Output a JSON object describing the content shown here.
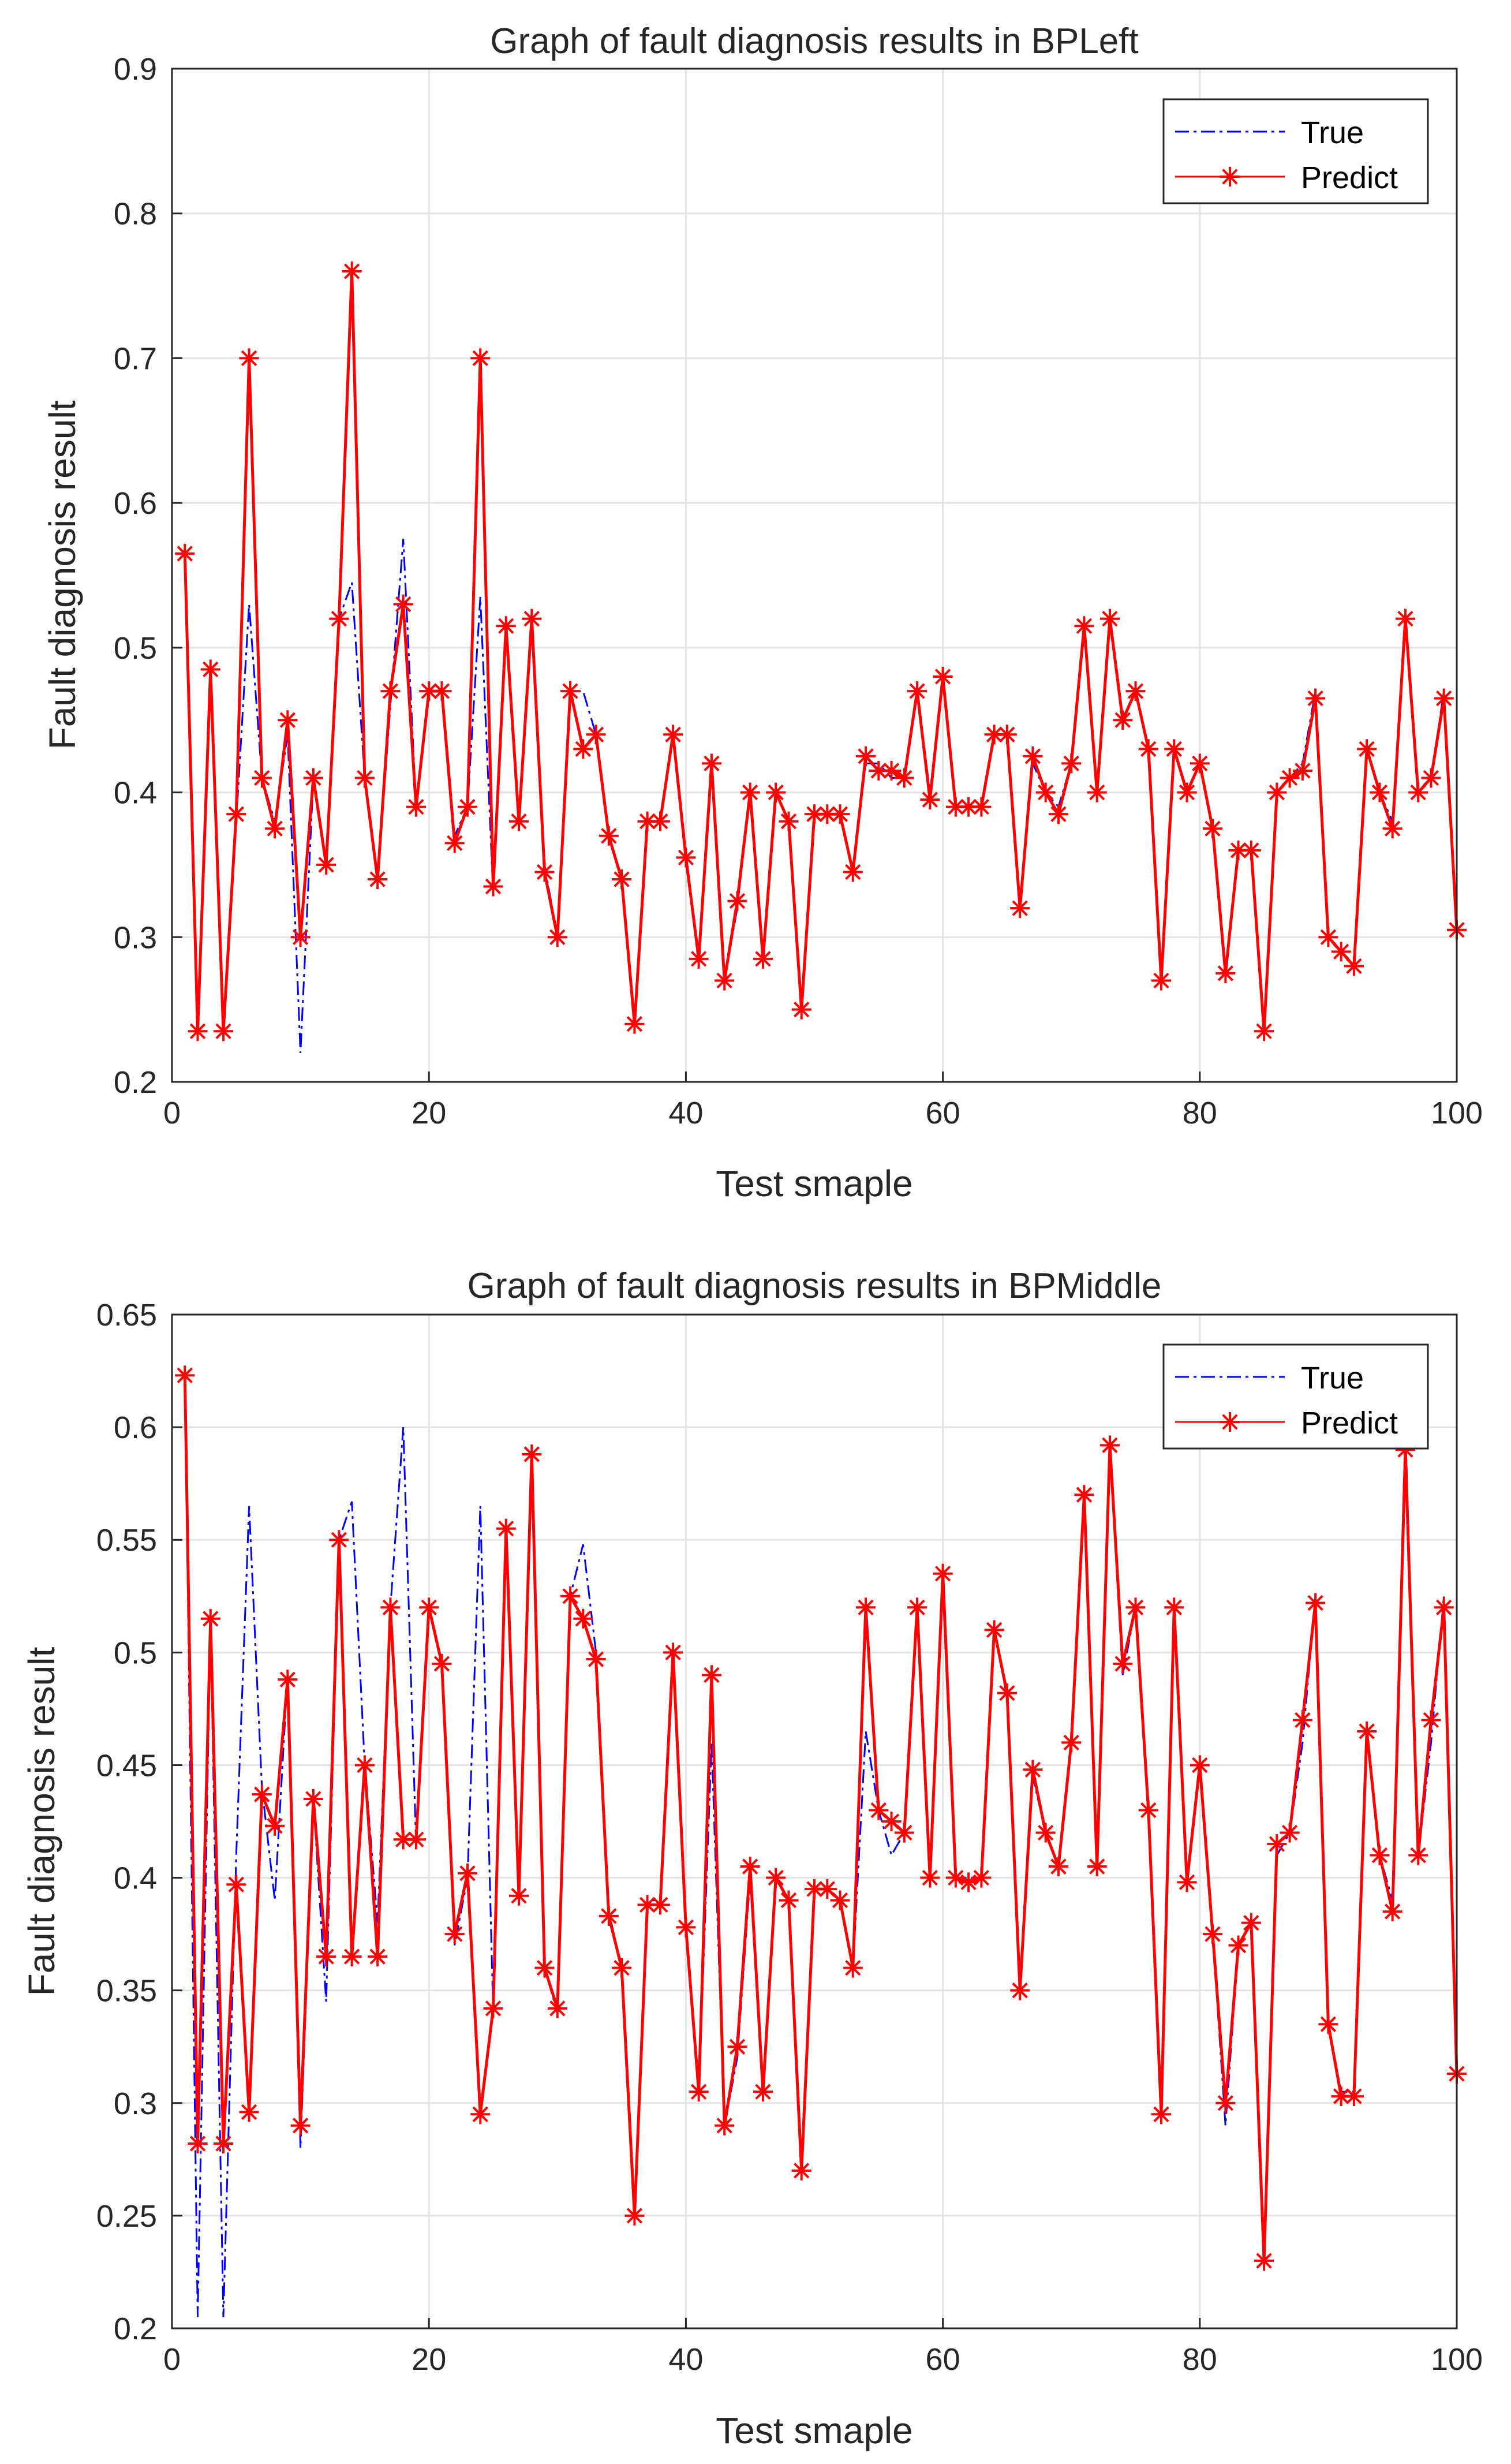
{
  "chart_data": [
    {
      "type": "line",
      "title": "Graph of fault diagnosis results in BPLeft",
      "xlabel": "Test smaple",
      "ylabel": "Fault diagnosis result",
      "xlim": [
        0,
        100
      ],
      "ylim": [
        0.2,
        0.9
      ],
      "xticks": [
        "0",
        "20",
        "40",
        "60",
        "80",
        "100"
      ],
      "yticks": [
        "0.2",
        "0.3",
        "0.4",
        "0.5",
        "0.6",
        "0.7",
        "0.8",
        "0.9"
      ],
      "grid": true,
      "legend_position": "top-right",
      "series": [
        {
          "name": "True",
          "style": "dash-dot",
          "color": "#0000ff",
          "x": [
            1,
            2,
            3,
            4,
            5,
            6,
            7,
            8,
            9,
            10,
            11,
            12,
            13,
            14,
            15,
            16,
            17,
            18,
            19,
            20,
            21,
            22,
            23,
            24,
            25,
            26,
            27,
            28,
            29,
            30,
            31,
            32,
            33,
            34,
            35,
            36,
            37,
            38,
            39,
            40,
            41,
            42,
            43,
            44,
            45,
            46,
            47,
            48,
            49,
            50,
            51,
            52,
            53,
            54,
            55,
            56,
            57,
            58,
            59,
            60,
            61,
            62,
            63,
            64,
            65,
            66,
            67,
            68,
            69,
            70,
            71,
            72,
            73,
            74,
            75,
            76,
            77,
            78,
            79,
            80,
            81,
            82,
            83,
            84,
            85,
            86,
            87,
            88,
            89,
            90,
            91,
            92,
            93,
            94,
            95,
            96,
            97,
            98,
            99,
            100
          ],
          "values": [
            0.57,
            0.23,
            0.49,
            0.23,
            0.38,
            0.53,
            0.41,
            0.38,
            0.44,
            0.22,
            0.41,
            0.35,
            0.52,
            0.545,
            0.41,
            0.34,
            0.46,
            0.575,
            0.39,
            0.47,
            0.47,
            0.37,
            0.39,
            0.535,
            0.33,
            0.515,
            0.38,
            0.52,
            0.35,
            0.3,
            0.47,
            0.47,
            0.44,
            0.37,
            0.34,
            0.24,
            0.38,
            0.38,
            0.44,
            0.36,
            0.28,
            0.42,
            0.27,
            0.32,
            0.4,
            0.28,
            0.4,
            0.38,
            0.25,
            0.385,
            0.385,
            0.385,
            0.345,
            0.42,
            0.42,
            0.41,
            0.41,
            0.47,
            0.4,
            0.48,
            0.39,
            0.39,
            0.39,
            0.44,
            0.44,
            0.32,
            0.42,
            0.4,
            0.39,
            0.42,
            0.51,
            0.4,
            0.52,
            0.45,
            0.47,
            0.43,
            0.27,
            0.43,
            0.4,
            0.42,
            0.375,
            0.275,
            0.36,
            0.36,
            0.235,
            0.4,
            0.41,
            0.42,
            0.47,
            0.3,
            0.29,
            0.28,
            0.43,
            0.4,
            0.38,
            0.52,
            0.4,
            0.41,
            0.47,
            0.305
          ]
        },
        {
          "name": "Predict",
          "style": "solid-star",
          "color": "#ff0000",
          "x": [
            1,
            2,
            3,
            4,
            5,
            6,
            7,
            8,
            9,
            10,
            11,
            12,
            13,
            14,
            15,
            16,
            17,
            18,
            19,
            20,
            21,
            22,
            23,
            24,
            25,
            26,
            27,
            28,
            29,
            30,
            31,
            32,
            33,
            34,
            35,
            36,
            37,
            38,
            39,
            40,
            41,
            42,
            43,
            44,
            45,
            46,
            47,
            48,
            49,
            50,
            51,
            52,
            53,
            54,
            55,
            56,
            57,
            58,
            59,
            60,
            61,
            62,
            63,
            64,
            65,
            66,
            67,
            68,
            69,
            70,
            71,
            72,
            73,
            74,
            75,
            76,
            77,
            78,
            79,
            80,
            81,
            82,
            83,
            84,
            85,
            86,
            87,
            88,
            89,
            90,
            91,
            92,
            93,
            94,
            95,
            96,
            97,
            98,
            99,
            100
          ],
          "values": [
            0.565,
            0.235,
            0.485,
            0.235,
            0.385,
            0.7,
            0.41,
            0.375,
            0.45,
            0.3,
            0.41,
            0.35,
            0.52,
            0.76,
            0.41,
            0.34,
            0.47,
            0.53,
            0.39,
            0.47,
            0.47,
            0.365,
            0.39,
            0.7,
            0.335,
            0.515,
            0.38,
            0.52,
            0.345,
            0.3,
            0.47,
            0.43,
            0.44,
            0.37,
            0.34,
            0.24,
            0.38,
            0.38,
            0.44,
            0.355,
            0.285,
            0.42,
            0.27,
            0.325,
            0.4,
            0.285,
            0.4,
            0.38,
            0.25,
            0.385,
            0.385,
            0.385,
            0.345,
            0.425,
            0.415,
            0.415,
            0.41,
            0.47,
            0.395,
            0.48,
            0.39,
            0.39,
            0.39,
            0.44,
            0.44,
            0.32,
            0.425,
            0.4,
            0.385,
            0.42,
            0.515,
            0.4,
            0.52,
            0.45,
            0.47,
            0.43,
            0.27,
            0.43,
            0.4,
            0.42,
            0.375,
            0.275,
            0.36,
            0.36,
            0.235,
            0.4,
            0.41,
            0.415,
            0.465,
            0.3,
            0.29,
            0.28,
            0.43,
            0.4,
            0.375,
            0.52,
            0.4,
            0.41,
            0.465,
            0.305
          ]
        }
      ]
    },
    {
      "type": "line",
      "title": "Graph of fault diagnosis results in BPMiddle",
      "xlabel": "Test smaple",
      "ylabel": "Fault diagnosis result",
      "xlim": [
        0,
        100
      ],
      "ylim": [
        0.2,
        0.65
      ],
      "xticks": [
        "0",
        "20",
        "40",
        "60",
        "80",
        "100"
      ],
      "yticks": [
        "0.2",
        "0.25",
        "0.3",
        "0.35",
        "0.4",
        "0.45",
        "0.5",
        "0.55",
        "0.6",
        "0.65"
      ],
      "grid": true,
      "legend_position": "top-right",
      "series": [
        {
          "name": "True",
          "style": "dash-dot",
          "color": "#0000ff",
          "x": [
            1,
            2,
            3,
            4,
            5,
            6,
            7,
            8,
            9,
            10,
            11,
            12,
            13,
            14,
            15,
            16,
            17,
            18,
            19,
            20,
            21,
            22,
            23,
            24,
            25,
            26,
            27,
            28,
            29,
            30,
            31,
            32,
            33,
            34,
            35,
            36,
            37,
            38,
            39,
            40,
            41,
            42,
            43,
            44,
            45,
            46,
            47,
            48,
            49,
            50,
            51,
            52,
            53,
            54,
            55,
            56,
            57,
            58,
            59,
            60,
            61,
            62,
            63,
            64,
            65,
            66,
            67,
            68,
            69,
            70,
            71,
            72,
            73,
            74,
            75,
            76,
            77,
            78,
            79,
            80,
            81,
            82,
            83,
            84,
            85,
            86,
            87,
            88,
            89,
            90,
            91,
            92,
            93,
            94,
            95,
            96,
            97,
            98,
            99,
            100
          ],
          "values": [
            0.625,
            0.205,
            0.515,
            0.205,
            0.41,
            0.565,
            0.44,
            0.39,
            0.49,
            0.28,
            0.435,
            0.345,
            0.55,
            0.567,
            0.45,
            0.38,
            0.52,
            0.6,
            0.415,
            0.52,
            0.495,
            0.37,
            0.4,
            0.565,
            0.34,
            0.555,
            0.39,
            0.59,
            0.36,
            0.34,
            0.525,
            0.548,
            0.5,
            0.385,
            0.36,
            0.25,
            0.39,
            0.39,
            0.5,
            0.375,
            0.305,
            0.46,
            0.29,
            0.32,
            0.4,
            0.305,
            0.4,
            0.39,
            0.27,
            0.395,
            0.395,
            0.39,
            0.36,
            0.465,
            0.43,
            0.41,
            0.42,
            0.52,
            0.4,
            0.535,
            0.4,
            0.4,
            0.4,
            0.51,
            0.48,
            0.35,
            0.445,
            0.42,
            0.405,
            0.46,
            0.57,
            0.405,
            0.59,
            0.49,
            0.52,
            0.43,
            0.295,
            0.52,
            0.4,
            0.45,
            0.375,
            0.29,
            0.37,
            0.38,
            0.225,
            0.41,
            0.42,
            0.46,
            0.525,
            0.335,
            0.305,
            0.305,
            0.465,
            0.41,
            0.39,
            0.6,
            0.41,
            0.46,
            0.525,
            0.315
          ]
        },
        {
          "name": "Predict",
          "style": "solid-star",
          "color": "#ff0000",
          "x": [
            1,
            2,
            3,
            4,
            5,
            6,
            7,
            8,
            9,
            10,
            11,
            12,
            13,
            14,
            15,
            16,
            17,
            18,
            19,
            20,
            21,
            22,
            23,
            24,
            25,
            26,
            27,
            28,
            29,
            30,
            31,
            32,
            33,
            34,
            35,
            36,
            37,
            38,
            39,
            40,
            41,
            42,
            43,
            44,
            45,
            46,
            47,
            48,
            49,
            50,
            51,
            52,
            53,
            54,
            55,
            56,
            57,
            58,
            59,
            60,
            61,
            62,
            63,
            64,
            65,
            66,
            67,
            68,
            69,
            70,
            71,
            72,
            73,
            74,
            75,
            76,
            77,
            78,
            79,
            80,
            81,
            82,
            83,
            84,
            85,
            86,
            87,
            88,
            89,
            90,
            91,
            92,
            93,
            94,
            95,
            96,
            97,
            98,
            99,
            100
          ],
          "values": [
            0.623,
            0.282,
            0.515,
            0.282,
            0.397,
            0.296,
            0.437,
            0.423,
            0.488,
            0.29,
            0.435,
            0.365,
            0.55,
            0.365,
            0.45,
            0.365,
            0.52,
            0.417,
            0.417,
            0.52,
            0.495,
            0.375,
            0.402,
            0.295,
            0.342,
            0.555,
            0.392,
            0.588,
            0.36,
            0.342,
            0.525,
            0.515,
            0.497,
            0.383,
            0.36,
            0.25,
            0.388,
            0.388,
            0.5,
            0.378,
            0.305,
            0.49,
            0.29,
            0.325,
            0.405,
            0.305,
            0.4,
            0.39,
            0.27,
            0.395,
            0.395,
            0.39,
            0.36,
            0.52,
            0.43,
            0.425,
            0.42,
            0.52,
            0.4,
            0.535,
            0.4,
            0.398,
            0.4,
            0.51,
            0.482,
            0.35,
            0.448,
            0.42,
            0.405,
            0.46,
            0.57,
            0.405,
            0.592,
            0.495,
            0.52,
            0.43,
            0.295,
            0.52,
            0.398,
            0.45,
            0.375,
            0.3,
            0.37,
            0.38,
            0.23,
            0.415,
            0.42,
            0.47,
            0.522,
            0.335,
            0.303,
            0.303,
            0.465,
            0.41,
            0.385,
            0.59,
            0.41,
            0.47,
            0.52,
            0.313
          ]
        }
      ]
    }
  ]
}
